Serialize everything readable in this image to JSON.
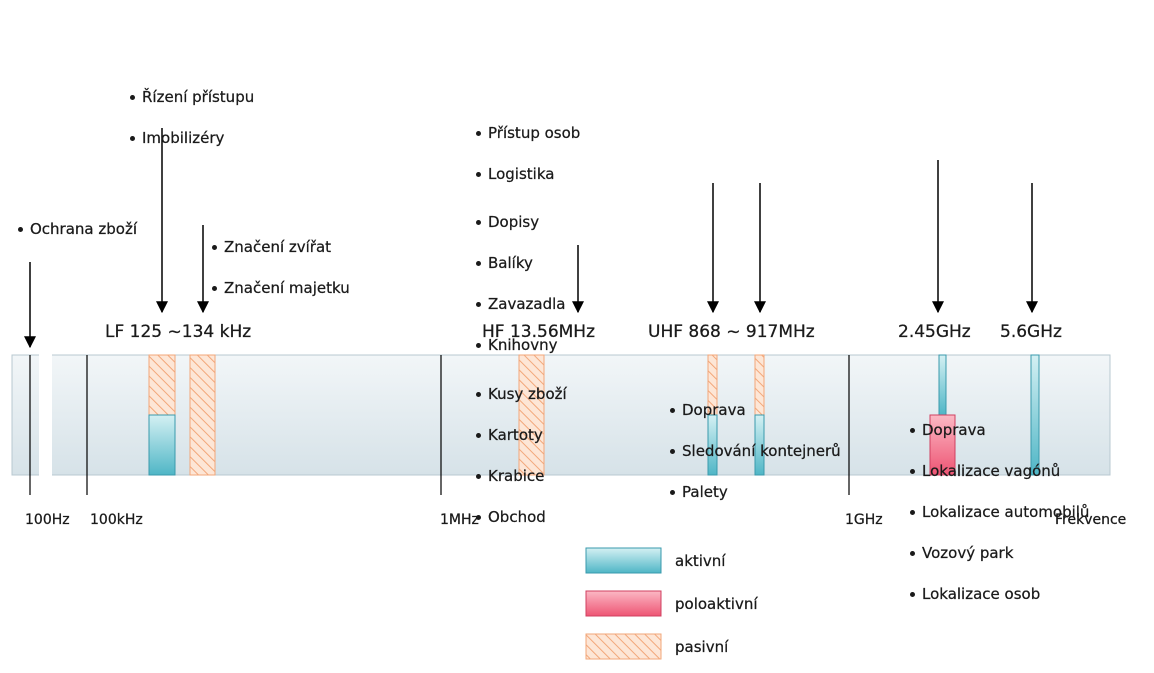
{
  "groups": [
    {
      "lists": [
        [
          "Ochrana zboží"
        ]
      ]
    },
    {
      "lists": [
        [
          "Řízení přístupu",
          "Imobilizéry"
        ]
      ]
    },
    {
      "lists": [
        [
          "Značení zvířat",
          "Značení majetku"
        ]
      ]
    },
    {
      "lists": [
        [
          "Přístup osob",
          "Logistika"
        ],
        [
          "Dopisy",
          "Balíky",
          "Zavazadla",
          "Knihovny"
        ],
        [
          "Kusy zboží",
          "Kartoty",
          "Krabice",
          "Obchod"
        ]
      ]
    },
    {
      "lists": [
        [
          "Doprava",
          "Sledování kontejnerů",
          "Palety"
        ]
      ]
    },
    {
      "lists": [
        [
          "Doprava",
          "Lokalizace vagónů",
          "Lokalizace automobilů",
          "Vozový park",
          "Lokalizace osob"
        ]
      ]
    }
  ],
  "bands": [
    "LF  125 ~134 kHz",
    "HF 13.56MHz",
    "UHF 868 ~ 917MHz",
    "2.45GHz",
    "5.6GHz"
  ],
  "axis": [
    "100Hz",
    "100kHz",
    "1MHz",
    "1GHz",
    "Frekvence"
  ],
  "legend": [
    "aktivní",
    "poloaktivní",
    "pasivní"
  ]
}
